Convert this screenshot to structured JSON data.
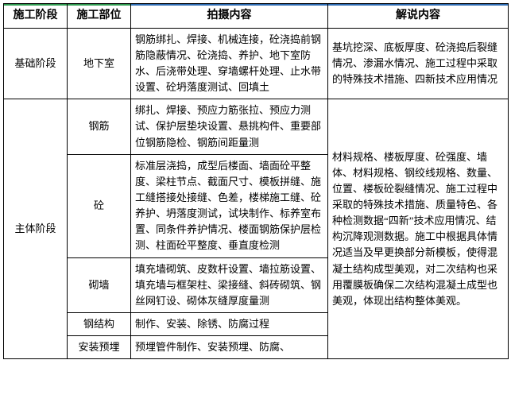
{
  "headers": {
    "stage": "施工阶段",
    "location": "施工部位",
    "shoot": "拍摄内容",
    "narration": "解说内容"
  },
  "foundation": {
    "stage": "基础阶段",
    "location": "地下室",
    "shoot": "钢筋绑扎、焊接、机械连接，砼浇捣前钢筋隐蔽情况、砼浇捣、养护、地下室防水、后浇带处理、穿墙螺杆处理、止水带设置、砼坍落度测试、回填土",
    "narration": "基坑挖深、底板厚度、砼浇捣后裂缝情况、渗漏水情况、施工过程中采取的特殊技术措施、四新技术应用情况"
  },
  "main": {
    "stage": "主体阶段",
    "rows": {
      "rebar": {
        "location": "钢筋",
        "shoot": "绑扎、焊接、预应力筋张拉、预应力测试、保护层垫块设置、悬挑构件、重要部位钢筋隐检、钢筋间距量测"
      },
      "concrete": {
        "location": "砼",
        "shoot": "标准层浇捣，成型后楼面、墙面砼平整度、梁柱节点、截面尺寸、模板拼缝、施工缝搭接处接缝、色差，楼梯施工缝、砼养护、坍落度测试，试块制作、标养室布置、同条件养护情况、楼面钢筋保护层检测、柱面砼平整度、垂直度检测"
      },
      "masonry": {
        "location": "砌墙",
        "shoot": "填充墙砌筑、皮数杆设置、墙拉筋设置、填充墙与框架柱、梁接缝、斜砖砌筑、钢丝网钉设、砌体灰缝厚度量测"
      },
      "steel": {
        "location": "钢结构",
        "shoot": "制作、安装、除锈、防腐过程"
      },
      "embed": {
        "location": "安装预埋",
        "shoot": "预埋管件制作、安装预埋、防腐、"
      }
    },
    "narration": "材料规格、楼板厚度、砼强度、墙体、材料规格、钢绞线规格、数量、位置、楼板砼裂缝情况、施工过程中采取的特殊技术措施、质量特色、各种检测数据“四新”技术应用情况、结构沉降观测数据。施工中根据具体情况适当及早更换部分新模板，使得混凝土结构成型美观，对二次结构也采用覆膜板确保二次结构混凝土成型也美观，体现出结构整体美观。"
  }
}
